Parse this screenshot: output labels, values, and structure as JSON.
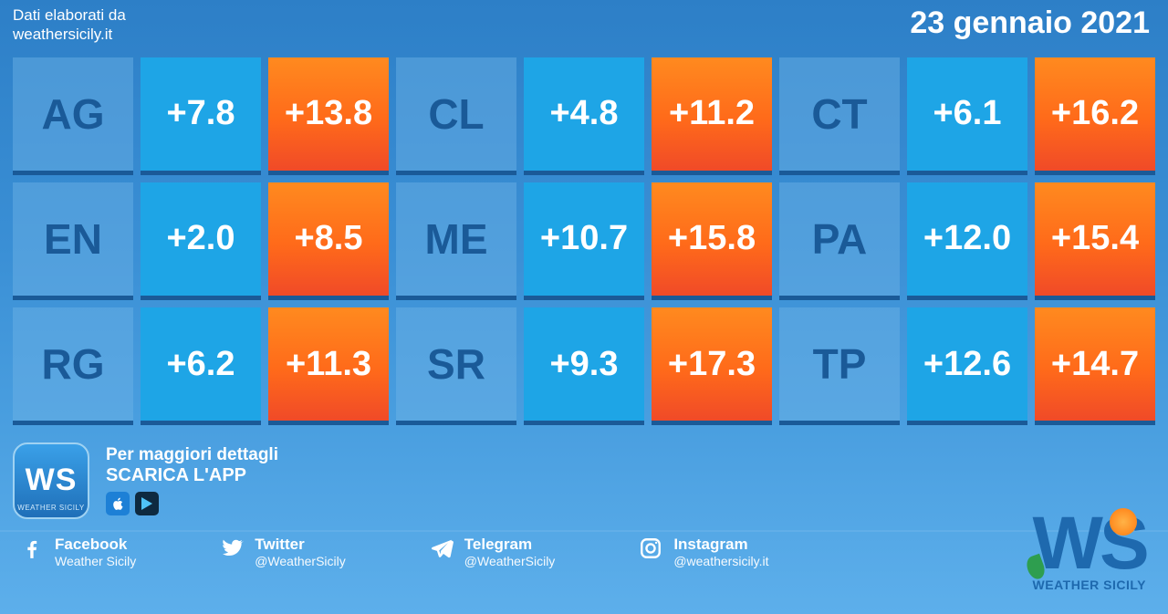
{
  "header": {
    "credit_label": "Dati elaborati da",
    "credit_source": "weathersicily.it",
    "date": "23 gennaio 2021"
  },
  "palette": {
    "code_text": "#1a5a98",
    "low_bg": "#1ea5e6",
    "high_bg_top": "#ff8a1f",
    "high_bg_bottom": "#f04a28",
    "value_text": "#ffffff",
    "border_bottom": "#1a5a98",
    "page_bg_top": "#2d7fc7",
    "page_bg_bottom": "#5dafeb"
  },
  "grid": {
    "rows": 3,
    "cols": 9,
    "cell_font_code": 46,
    "cell_font_value": 38,
    "provinces": [
      {
        "code": "AG",
        "low": "+7.8",
        "high": "+13.8"
      },
      {
        "code": "CL",
        "low": "+4.8",
        "high": "+11.2"
      },
      {
        "code": "CT",
        "low": "+6.1",
        "high": "+16.2"
      },
      {
        "code": "EN",
        "low": "+2.0",
        "high": "+8.5"
      },
      {
        "code": "ME",
        "low": "+10.7",
        "high": "+15.8"
      },
      {
        "code": "PA",
        "low": "+12.0",
        "high": "+15.4"
      },
      {
        "code": "RG",
        "low": "+6.2",
        "high": "+11.3"
      },
      {
        "code": "SR",
        "low": "+9.3",
        "high": "+17.3"
      },
      {
        "code": "TP",
        "low": "+12.6",
        "high": "+14.7"
      }
    ]
  },
  "app": {
    "icon_text": "WS",
    "icon_sub": "WEATHER SICILY",
    "line1": "Per maggiori dettagli",
    "line2": "SCARICA L'APP"
  },
  "social": {
    "facebook": {
      "name": "Facebook",
      "handle": "Weather Sicily"
    },
    "twitter": {
      "name": "Twitter",
      "handle": "@WeatherSicily"
    },
    "telegram": {
      "name": "Telegram",
      "handle": "@WeatherSicily"
    },
    "instagram": {
      "name": "Instagram",
      "handle": "@weathersicily.it"
    }
  },
  "brand": {
    "logo_text": "WS",
    "sub": "WEATHER SICILY"
  }
}
